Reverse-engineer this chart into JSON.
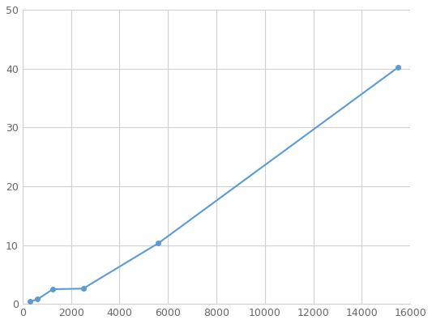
{
  "x": [
    312.5,
    625,
    1250,
    2500,
    5600,
    15500
  ],
  "y": [
    0.4,
    0.8,
    2.5,
    2.6,
    10.3,
    40.2
  ],
  "line_color": "#5b9bd5",
  "marker_color": "#5b9bd5",
  "marker_size": 4,
  "line_width": 1.5,
  "xlim": [
    0,
    16000
  ],
  "ylim": [
    0,
    50
  ],
  "xticks": [
    0,
    2000,
    4000,
    6000,
    8000,
    10000,
    12000,
    14000,
    16000
  ],
  "yticks": [
    0,
    10,
    20,
    30,
    40,
    50
  ],
  "grid_color": "#d0d0d0",
  "background_color": "#ffffff",
  "tick_label_fontsize": 9,
  "tick_label_color": "#666666"
}
